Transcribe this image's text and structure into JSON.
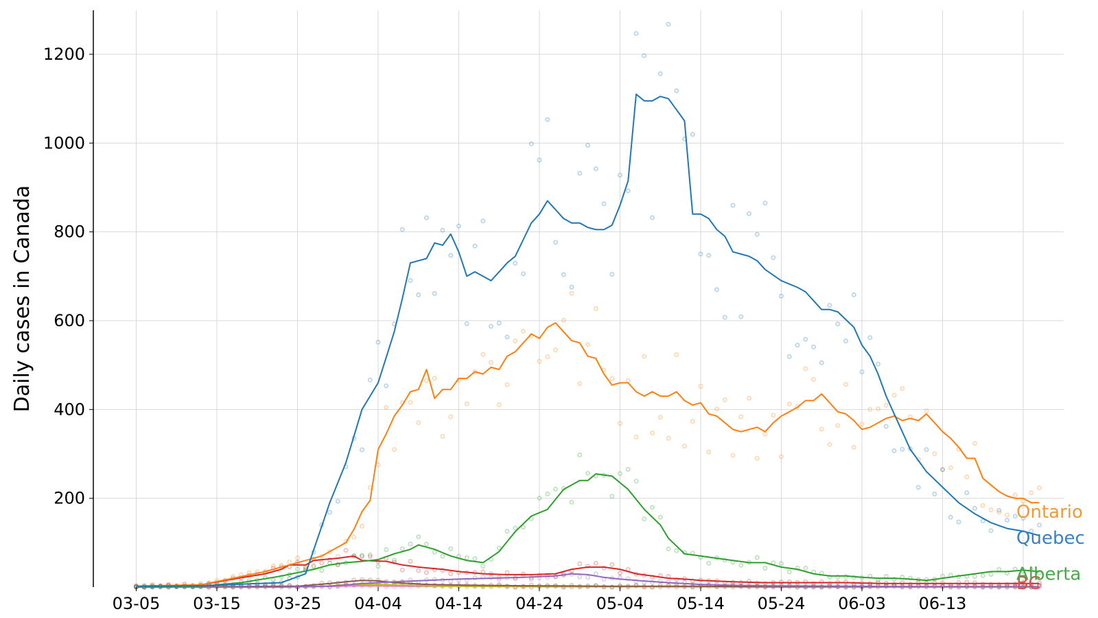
{
  "chart_data": {
    "type": "line",
    "title": "",
    "xlabel": "",
    "ylabel": "Daily cases in Canada",
    "ylim": [
      0,
      1300
    ],
    "yticks": [
      200,
      400,
      600,
      800,
      1000,
      1200
    ],
    "start_date": "03-03",
    "xtick_labels": [
      "03-05",
      "03-15",
      "03-25",
      "04-04",
      "04-14",
      "04-24",
      "05-04",
      "05-14",
      "05-24",
      "06-03",
      "06-13"
    ],
    "grid": true,
    "series": [
      {
        "name": "Quebec",
        "color": "#1f77b4",
        "label_color": "#3b7fc4",
        "keypoints": [
          [
            2,
            2
          ],
          [
            10,
            3
          ],
          [
            20,
            10
          ],
          [
            23,
            30
          ],
          [
            26,
            190
          ],
          [
            28,
            280
          ],
          [
            30,
            400
          ],
          [
            32,
            460
          ],
          [
            34,
            575
          ],
          [
            35,
            650
          ],
          [
            36,
            730
          ],
          [
            38,
            740
          ],
          [
            39,
            775
          ],
          [
            40,
            770
          ],
          [
            41,
            795
          ],
          [
            42,
            755
          ],
          [
            43,
            700
          ],
          [
            44,
            710
          ],
          [
            46,
            690
          ],
          [
            48,
            730
          ],
          [
            49,
            745
          ],
          [
            51,
            820
          ],
          [
            52,
            840
          ],
          [
            53,
            870
          ],
          [
            55,
            830
          ],
          [
            56,
            820
          ],
          [
            57,
            820
          ],
          [
            58,
            810
          ],
          [
            59,
            805
          ],
          [
            60,
            805
          ],
          [
            61,
            815
          ],
          [
            62,
            860
          ],
          [
            63,
            915
          ],
          [
            64,
            1110
          ],
          [
            65,
            1095
          ],
          [
            66,
            1095
          ],
          [
            67,
            1105
          ],
          [
            68,
            1100
          ],
          [
            70,
            1050
          ],
          [
            71,
            840
          ],
          [
            72,
            840
          ],
          [
            73,
            830
          ],
          [
            74,
            805
          ],
          [
            75,
            790
          ],
          [
            76,
            755
          ],
          [
            78,
            745
          ],
          [
            79,
            735
          ],
          [
            80,
            715
          ],
          [
            82,
            690
          ],
          [
            84,
            675
          ],
          [
            85,
            665
          ],
          [
            87,
            625
          ],
          [
            88,
            625
          ],
          [
            89,
            620
          ],
          [
            91,
            585
          ],
          [
            92,
            545
          ],
          [
            93,
            520
          ],
          [
            94,
            480
          ],
          [
            95,
            430
          ],
          [
            96,
            390
          ],
          [
            98,
            310
          ],
          [
            100,
            260
          ],
          [
            102,
            225
          ],
          [
            104,
            190
          ],
          [
            106,
            165
          ],
          [
            108,
            145
          ],
          [
            110,
            132
          ],
          [
            112,
            126
          ],
          [
            114,
            116
          ]
        ]
      },
      {
        "name": "Ontario",
        "color": "#ff7f0e",
        "label_color": "#f19a3a",
        "keypoints": [
          [
            2,
            2
          ],
          [
            10,
            5
          ],
          [
            14,
            20
          ],
          [
            18,
            35
          ],
          [
            21,
            50
          ],
          [
            23,
            60
          ],
          [
            25,
            70
          ],
          [
            26,
            80
          ],
          [
            28,
            100
          ],
          [
            29,
            130
          ],
          [
            30,
            170
          ],
          [
            31,
            195
          ],
          [
            32,
            310
          ],
          [
            33,
            345
          ],
          [
            34,
            385
          ],
          [
            35,
            410
          ],
          [
            36,
            440
          ],
          [
            37,
            445
          ],
          [
            38,
            490
          ],
          [
            39,
            425
          ],
          [
            40,
            445
          ],
          [
            41,
            445
          ],
          [
            42,
            470
          ],
          [
            43,
            470
          ],
          [
            44,
            485
          ],
          [
            45,
            480
          ],
          [
            46,
            495
          ],
          [
            47,
            490
          ],
          [
            48,
            520
          ],
          [
            49,
            530
          ],
          [
            50,
            550
          ],
          [
            51,
            570
          ],
          [
            52,
            560
          ],
          [
            53,
            585
          ],
          [
            54,
            595
          ],
          [
            55,
            575
          ],
          [
            56,
            555
          ],
          [
            57,
            550
          ],
          [
            58,
            520
          ],
          [
            59,
            515
          ],
          [
            60,
            480
          ],
          [
            61,
            455
          ],
          [
            62,
            460
          ],
          [
            63,
            460
          ],
          [
            64,
            440
          ],
          [
            65,
            430
          ],
          [
            66,
            440
          ],
          [
            67,
            430
          ],
          [
            68,
            430
          ],
          [
            69,
            440
          ],
          [
            70,
            420
          ],
          [
            71,
            410
          ],
          [
            72,
            415
          ],
          [
            73,
            390
          ],
          [
            74,
            385
          ],
          [
            75,
            370
          ],
          [
            76,
            355
          ],
          [
            77,
            350
          ],
          [
            78,
            355
          ],
          [
            79,
            360
          ],
          [
            80,
            350
          ],
          [
            81,
            370
          ],
          [
            82,
            385
          ],
          [
            83,
            395
          ],
          [
            84,
            405
          ],
          [
            85,
            420
          ],
          [
            86,
            420
          ],
          [
            87,
            435
          ],
          [
            88,
            415
          ],
          [
            89,
            395
          ],
          [
            90,
            390
          ],
          [
            91,
            375
          ],
          [
            92,
            355
          ],
          [
            93,
            360
          ],
          [
            94,
            370
          ],
          [
            95,
            380
          ],
          [
            96,
            385
          ],
          [
            97,
            375
          ],
          [
            98,
            380
          ],
          [
            99,
            375
          ],
          [
            100,
            390
          ],
          [
            101,
            370
          ],
          [
            102,
            350
          ],
          [
            103,
            335
          ],
          [
            104,
            315
          ],
          [
            105,
            290
          ],
          [
            106,
            290
          ],
          [
            107,
            245
          ],
          [
            108,
            230
          ],
          [
            109,
            215
          ],
          [
            110,
            205
          ],
          [
            111,
            200
          ],
          [
            112,
            200
          ],
          [
            113,
            190
          ],
          [
            114,
            190
          ]
        ]
      },
      {
        "name": "Alberta",
        "color": "#2ca02c",
        "label_color": "#4aa84a",
        "keypoints": [
          [
            2,
            0
          ],
          [
            10,
            2
          ],
          [
            15,
            10
          ],
          [
            20,
            25
          ],
          [
            24,
            40
          ],
          [
            26,
            50
          ],
          [
            28,
            55
          ],
          [
            30,
            58
          ],
          [
            32,
            62
          ],
          [
            34,
            75
          ],
          [
            36,
            85
          ],
          [
            37,
            95
          ],
          [
            39,
            85
          ],
          [
            41,
            70
          ],
          [
            43,
            60
          ],
          [
            45,
            55
          ],
          [
            47,
            80
          ],
          [
            49,
            125
          ],
          [
            51,
            160
          ],
          [
            53,
            175
          ],
          [
            55,
            220
          ],
          [
            57,
            240
          ],
          [
            58,
            240
          ],
          [
            59,
            255
          ],
          [
            61,
            250
          ],
          [
            63,
            220
          ],
          [
            65,
            175
          ],
          [
            67,
            140
          ],
          [
            68,
            110
          ],
          [
            70,
            75
          ],
          [
            72,
            70
          ],
          [
            74,
            65
          ],
          [
            76,
            60
          ],
          [
            78,
            55
          ],
          [
            80,
            55
          ],
          [
            82,
            45
          ],
          [
            84,
            40
          ],
          [
            86,
            30
          ],
          [
            88,
            25
          ],
          [
            90,
            25
          ],
          [
            92,
            22
          ],
          [
            94,
            20
          ],
          [
            96,
            20
          ],
          [
            98,
            18
          ],
          [
            100,
            15
          ],
          [
            102,
            20
          ],
          [
            104,
            25
          ],
          [
            106,
            30
          ],
          [
            108,
            35
          ],
          [
            110,
            35
          ],
          [
            112,
            38
          ],
          [
            114,
            35
          ]
        ]
      },
      {
        "name": "BC",
        "color": "#d62728",
        "label_color": "#d9534f",
        "keypoints": [
          [
            2,
            2
          ],
          [
            10,
            5
          ],
          [
            14,
            18
          ],
          [
            18,
            30
          ],
          [
            20,
            40
          ],
          [
            21,
            50
          ],
          [
            23,
            50
          ],
          [
            24,
            60
          ],
          [
            27,
            65
          ],
          [
            29,
            70
          ],
          [
            30,
            60
          ],
          [
            33,
            58
          ],
          [
            35,
            50
          ],
          [
            37,
            45
          ],
          [
            40,
            40
          ],
          [
            42,
            35
          ],
          [
            45,
            30
          ],
          [
            48,
            28
          ],
          [
            51,
            28
          ],
          [
            54,
            30
          ],
          [
            56,
            40
          ],
          [
            58,
            45
          ],
          [
            60,
            45
          ],
          [
            62,
            40
          ],
          [
            64,
            30
          ],
          [
            66,
            25
          ],
          [
            68,
            20
          ],
          [
            70,
            18
          ],
          [
            72,
            15
          ],
          [
            76,
            12
          ],
          [
            80,
            10
          ],
          [
            85,
            10
          ],
          [
            90,
            10
          ],
          [
            95,
            8
          ],
          [
            100,
            8
          ],
          [
            105,
            8
          ],
          [
            110,
            8
          ],
          [
            114,
            8
          ]
        ]
      },
      {
        "name": "",
        "color": "#9467bd",
        "keypoints": [
          [
            2,
            0
          ],
          [
            20,
            0
          ],
          [
            26,
            2
          ],
          [
            30,
            8
          ],
          [
            34,
            12
          ],
          [
            38,
            15
          ],
          [
            42,
            18
          ],
          [
            46,
            20
          ],
          [
            50,
            22
          ],
          [
            54,
            25
          ],
          [
            56,
            30
          ],
          [
            58,
            28
          ],
          [
            60,
            22
          ],
          [
            62,
            18
          ],
          [
            64,
            15
          ],
          [
            68,
            10
          ],
          [
            72,
            6
          ],
          [
            76,
            4
          ],
          [
            80,
            3
          ],
          [
            90,
            2
          ],
          [
            100,
            1
          ],
          [
            114,
            1
          ]
        ]
      },
      {
        "name": "",
        "color": "#8c564b",
        "keypoints": [
          [
            2,
            0
          ],
          [
            22,
            2
          ],
          [
            26,
            8
          ],
          [
            28,
            12
          ],
          [
            30,
            15
          ],
          [
            32,
            14
          ],
          [
            34,
            10
          ],
          [
            38,
            6
          ],
          [
            44,
            4
          ],
          [
            50,
            3
          ],
          [
            60,
            2
          ],
          [
            70,
            2
          ],
          [
            80,
            1
          ],
          [
            90,
            1
          ],
          [
            100,
            1
          ],
          [
            114,
            1
          ]
        ]
      },
      {
        "name": "",
        "color": "#bcbd22",
        "keypoints": [
          [
            2,
            0
          ],
          [
            24,
            1
          ],
          [
            28,
            5
          ],
          [
            32,
            6
          ],
          [
            36,
            4
          ],
          [
            40,
            2
          ],
          [
            50,
            1
          ],
          [
            60,
            1
          ],
          [
            80,
            0
          ],
          [
            100,
            0
          ],
          [
            114,
            0
          ]
        ]
      },
      {
        "name": "",
        "color": "#e377c2",
        "keypoints": [
          [
            2,
            0
          ],
          [
            24,
            1
          ],
          [
            30,
            3
          ],
          [
            36,
            2
          ],
          [
            44,
            2
          ],
          [
            54,
            1
          ],
          [
            70,
            1
          ],
          [
            90,
            0
          ],
          [
            114,
            0
          ]
        ]
      }
    ]
  }
}
